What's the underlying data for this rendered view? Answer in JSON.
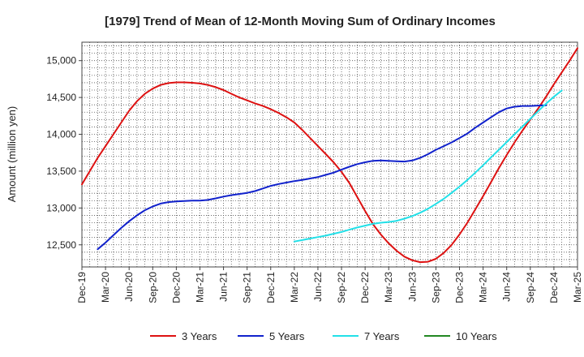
{
  "chart_data": {
    "type": "line",
    "title": "[1979]  Trend of Mean of 12-Month Moving Sum of Ordinary Incomes",
    "xlabel": "",
    "ylabel": "Amount (million yen)",
    "ylim": [
      12200,
      15250
    ],
    "y_ticks": [
      12500,
      13000,
      13500,
      14000,
      14500,
      15000
    ],
    "y_tick_labels": [
      "12,500",
      "13,000",
      "13,500",
      "14,000",
      "14,500",
      "15,000"
    ],
    "x_tick_labels": [
      "Dec-19",
      "Mar-20",
      "Jun-20",
      "Sep-20",
      "Dec-20",
      "Mar-21",
      "Jun-21",
      "Sep-21",
      "Dec-21",
      "Mar-22",
      "Jun-22",
      "Sep-22",
      "Dec-22",
      "Mar-23",
      "Jun-23",
      "Sep-23",
      "Dec-23",
      "Mar-24",
      "Jun-24",
      "Sep-24",
      "Dec-24",
      "Mar-25"
    ],
    "grid": true,
    "legend_position": "bottom",
    "series": [
      {
        "name": "3 Years",
        "color": "#dd1111",
        "start_index": 0,
        "values": [
          13320,
          13500,
          13680,
          13840,
          14000,
          14160,
          14320,
          14450,
          14550,
          14620,
          14670,
          14695,
          14705,
          14705,
          14700,
          14690,
          14670,
          14640,
          14600,
          14550,
          14500,
          14460,
          14420,
          14385,
          14340,
          14290,
          14230,
          14160,
          14060,
          13950,
          13840,
          13730,
          13620,
          13490,
          13340,
          13150,
          12960,
          12780,
          12640,
          12520,
          12420,
          12340,
          12290,
          12265,
          12270,
          12310,
          12390,
          12500,
          12640,
          12800,
          12980,
          13160,
          13350,
          13540,
          13720,
          13890,
          14050,
          14200,
          14350,
          14510,
          14680,
          14840,
          15000,
          15170
        ]
      },
      {
        "name": "5 Years",
        "color": "#1122cc",
        "start_index": 2,
        "values": [
          12440,
          12530,
          12630,
          12730,
          12820,
          12900,
          12970,
          13020,
          13060,
          13080,
          13090,
          13095,
          13100,
          13100,
          13110,
          13130,
          13155,
          13175,
          13190,
          13205,
          13230,
          13265,
          13300,
          13325,
          13345,
          13365,
          13380,
          13400,
          13420,
          13450,
          13480,
          13520,
          13560,
          13595,
          13620,
          13640,
          13645,
          13640,
          13635,
          13630,
          13645,
          13680,
          13730,
          13790,
          13840,
          13890,
          13950,
          14010,
          14090,
          14160,
          14230,
          14300,
          14350,
          14375,
          14385,
          14385,
          14390,
          14395
        ]
      },
      {
        "name": "7 Years",
        "color": "#22e0e8",
        "start_index": 27,
        "values": [
          12545,
          12565,
          12585,
          12605,
          12625,
          12650,
          12675,
          12705,
          12735,
          12760,
          12785,
          12800,
          12810,
          12825,
          12855,
          12890,
          12935,
          12990,
          13055,
          13125,
          13205,
          13290,
          13380,
          13480,
          13580,
          13685,
          13790,
          13895,
          14000,
          14105,
          14210,
          14315,
          14415,
          14510,
          14595
        ]
      },
      {
        "name": "10 Years",
        "color": "#228822",
        "start_index": 0,
        "values": []
      }
    ]
  }
}
